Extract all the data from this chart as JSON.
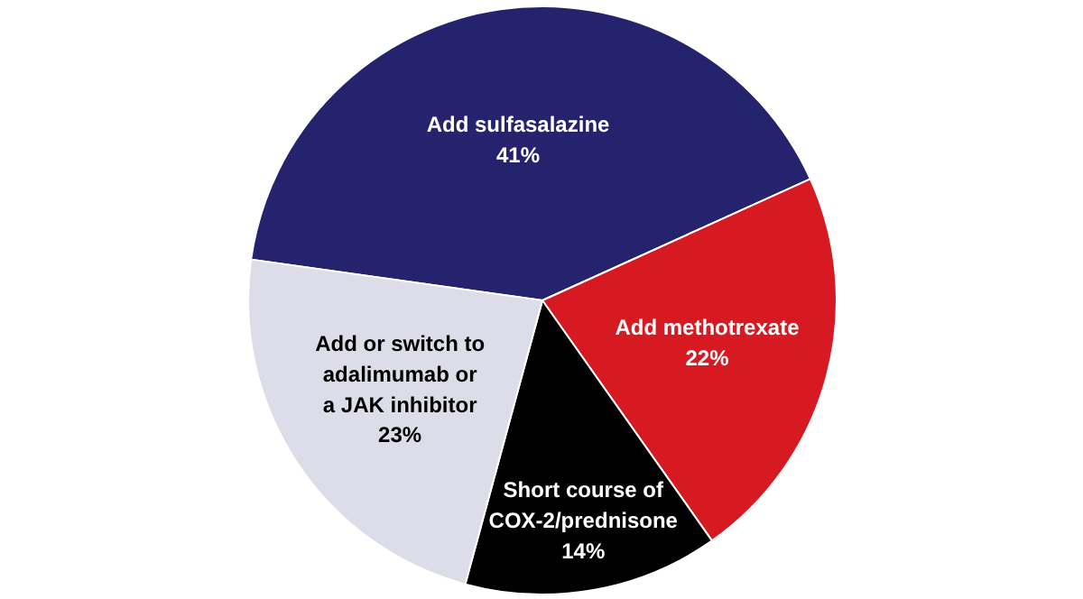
{
  "chart_data": {
    "type": "pie",
    "categories": [
      "Add sulfasalazine",
      "Add methotrexate",
      "Short course of\nCOX-2/prednisone",
      "Add or switch to\nadalimumab or\na JAK inhibitor"
    ],
    "values": [
      41,
      22,
      14,
      23
    ],
    "colors": [
      "#25236e",
      "#d71a21",
      "#000000",
      "#dcdde8"
    ],
    "value_labels": [
      "41%",
      "22%",
      "14%",
      "23%"
    ]
  }
}
